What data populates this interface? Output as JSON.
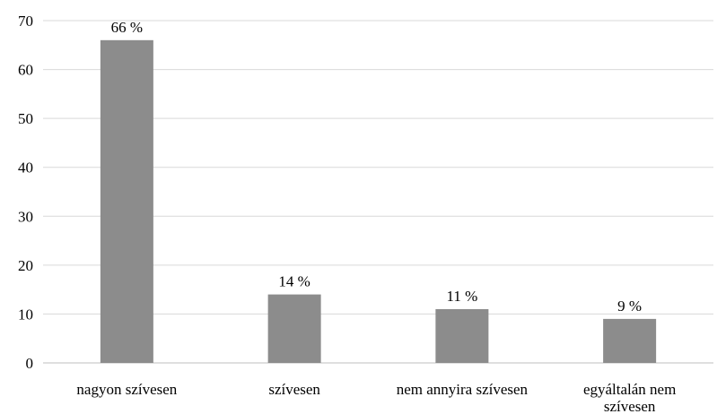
{
  "chart_data": {
    "type": "bar",
    "categories": [
      [
        "nagyon szívesen"
      ],
      [
        "szívesen"
      ],
      [
        "nem annyira szívesen"
      ],
      [
        "egyáltalán nem",
        "szívesen"
      ]
    ],
    "values": [
      66,
      14,
      11,
      9
    ],
    "data_labels": [
      "66 %",
      "14 %",
      "11 %",
      "9 %"
    ],
    "yticks": [
      0,
      10,
      20,
      30,
      40,
      50,
      60,
      70
    ],
    "ylim": [
      0,
      70
    ],
    "title": "",
    "xlabel": "",
    "ylabel": "",
    "grid": true,
    "legend": "none",
    "colors": {
      "bar": "#8c8c8c",
      "grid": "#d9d9d9",
      "axis": "#bfbfbf"
    }
  }
}
